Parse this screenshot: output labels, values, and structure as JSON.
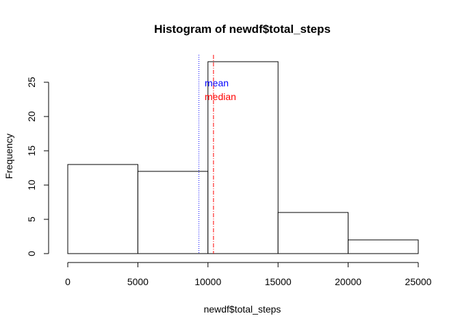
{
  "chart_data": {
    "type": "bar",
    "title": "Histogram of newdf$total_steps",
    "xlabel": "newdf$total_steps",
    "ylabel": "Frequency",
    "bins": [
      {
        "start": 0,
        "end": 5000,
        "count": 13
      },
      {
        "start": 5000,
        "end": 10000,
        "count": 12
      },
      {
        "start": 10000,
        "end": 15000,
        "count": 28
      },
      {
        "start": 15000,
        "end": 20000,
        "count": 6
      },
      {
        "start": 20000,
        "end": 25000,
        "count": 2
      }
    ],
    "xlim": [
      0,
      25000
    ],
    "ylim": [
      0,
      28
    ],
    "x_ticks": [
      0,
      5000,
      10000,
      15000,
      20000,
      25000
    ],
    "y_ticks": [
      0,
      5,
      10,
      15,
      20,
      25
    ],
    "grid": false,
    "annotations": [
      {
        "label": "mean",
        "x": 9354,
        "color": "#0000ff",
        "line_style": "dotted"
      },
      {
        "label": "median",
        "x": 10395,
        "color": "#ff0000",
        "line_style": "dashdot"
      }
    ]
  }
}
